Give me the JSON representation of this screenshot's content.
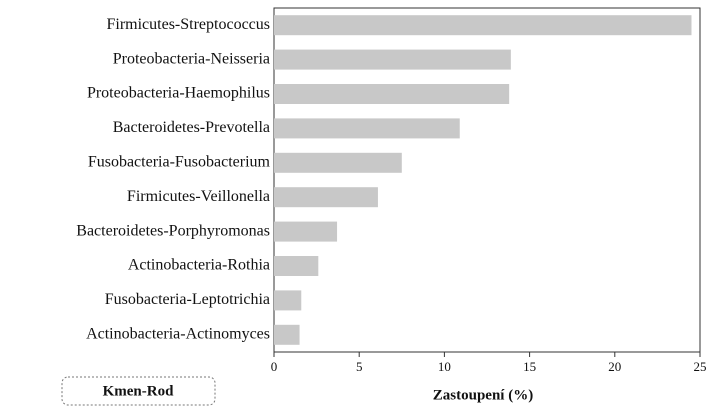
{
  "chart_data": {
    "type": "barh",
    "categories": [
      "Firmicutes-Streptococcus",
      "Proteobacteria-Neisseria",
      "Proteobacteria-Haemophilus",
      "Bacteroidetes-Prevotella",
      "Fusobacteria-Fusobacterium",
      "Firmicutes-Veillonella",
      "Bacteroidetes-Porphyromonas",
      "Actinobacteria-Rothia",
      "Fusobacteria-Leptotrichia",
      "Actinobacteria-Actinomyces"
    ],
    "values": [
      24.5,
      13.9,
      13.8,
      10.9,
      7.5,
      6.1,
      3.7,
      2.6,
      1.6,
      1.5
    ],
    "color": "#c8c8c8",
    "xlim": [
      0,
      25
    ],
    "xticks": [
      0,
      5,
      10,
      15,
      20,
      25
    ],
    "xlabel": "Zastoupení (%)",
    "box_label": "Kmen-Rod"
  }
}
